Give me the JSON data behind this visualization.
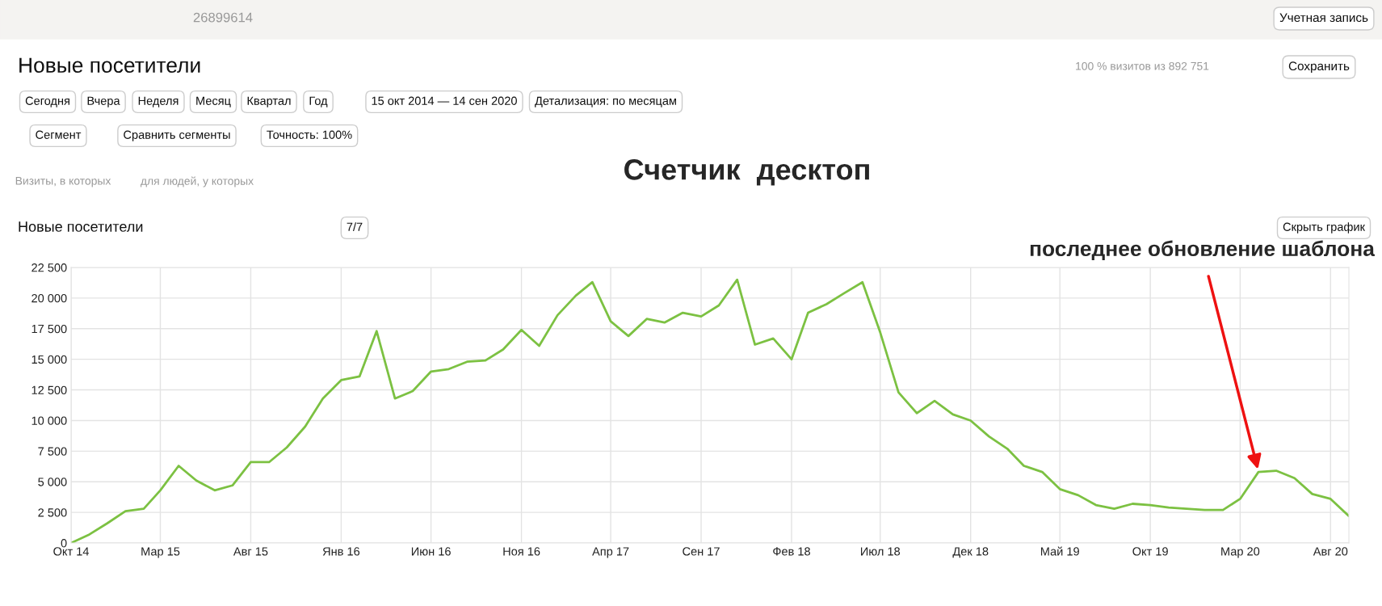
{
  "chart_data": {
    "type": "line",
    "title": "Счетчик  десктоп",
    "x": [
      "2014-10",
      "2014-11",
      "2014-12",
      "2015-01",
      "2015-02",
      "2015-03",
      "2015-04",
      "2015-05",
      "2015-06",
      "2015-07",
      "2015-08",
      "2015-09",
      "2015-10",
      "2015-11",
      "2015-12",
      "2016-01",
      "2016-02",
      "2016-03",
      "2016-04",
      "2016-05",
      "2016-06",
      "2016-07",
      "2016-08",
      "2016-09",
      "2016-10",
      "2016-11",
      "2016-12",
      "2017-01",
      "2017-02",
      "2017-03",
      "2017-04",
      "2017-05",
      "2017-06",
      "2017-07",
      "2017-08",
      "2017-09",
      "2017-10",
      "2017-11",
      "2017-12",
      "2018-01",
      "2018-02",
      "2018-03",
      "2018-04",
      "2018-05",
      "2018-06",
      "2018-07",
      "2018-08",
      "2018-09",
      "2018-10",
      "2018-11",
      "2018-12",
      "2019-01",
      "2019-02",
      "2019-03",
      "2019-04",
      "2019-05",
      "2019-06",
      "2019-07",
      "2019-08",
      "2019-09",
      "2019-10",
      "2019-11",
      "2019-12",
      "2020-01",
      "2020-02",
      "2020-03",
      "2020-04",
      "2020-05",
      "2020-06",
      "2020-07",
      "2020-08",
      "2020-09"
    ],
    "series": [
      {
        "color": "#7cc142",
        "values": [
          0,
          700,
          1600,
          2600,
          2800,
          4300,
          6300,
          5100,
          4300,
          4700,
          6600,
          6600,
          7800,
          9500,
          11800,
          13300,
          13600,
          17300,
          11800,
          12400,
          14000,
          14200,
          14800,
          14900,
          15800,
          17400,
          16100,
          18600,
          20200,
          21300,
          18100,
          16900,
          18300,
          18000,
          18800,
          18500,
          19400,
          21500,
          16200,
          16700,
          15000,
          18800,
          19500,
          20400,
          21300,
          17200,
          12300,
          10600,
          11600,
          10500,
          10000,
          8700,
          7700,
          6300,
          5800,
          4400,
          3900,
          3100,
          2800,
          3200,
          3100,
          2900,
          2800,
          2700,
          2700,
          3600,
          5800,
          5900,
          5300,
          4000,
          3600,
          2200
        ]
      }
    ],
    "xlim": [
      "2014-10",
      "2020-09"
    ],
    "xticks": [
      {
        "value": "2014-10",
        "label": "Окт 14"
      },
      {
        "value": "2015-03",
        "label": "Мар 15"
      },
      {
        "value": "2015-08",
        "label": "Авг 15"
      },
      {
        "value": "2016-01",
        "label": "Янв 16"
      },
      {
        "value": "2016-06",
        "label": "Июн 16"
      },
      {
        "value": "2016-11",
        "label": "Ноя 16"
      },
      {
        "value": "2017-04",
        "label": "Апр 17"
      },
      {
        "value": "2017-09",
        "label": "Сен 17"
      },
      {
        "value": "2018-02",
        "label": "Фев 18"
      },
      {
        "value": "2018-07",
        "label": "Июл 18"
      },
      {
        "value": "2018-12",
        "label": "Дек 18"
      },
      {
        "value": "2019-05",
        "label": "Май 19"
      },
      {
        "value": "2019-10",
        "label": "Окт 19"
      },
      {
        "value": "2020-03",
        "label": "Мар 20"
      },
      {
        "value": "2020-08",
        "label": "Авг 20"
      }
    ],
    "ylim": [
      0,
      22500
    ],
    "yticks": [
      0,
      {
        "value": 2500,
        "label": "2 500"
      },
      {
        "value": 5000,
        "label": "5 000"
      },
      {
        "value": 7500,
        "label": "7 500"
      },
      {
        "value": 10000,
        "label": "10 000"
      },
      {
        "value": 12500,
        "label": "12 500"
      },
      {
        "value": 15000,
        "label": "15 000"
      },
      {
        "value": 17500,
        "label": "17 500"
      },
      {
        "value": 20000,
        "label": "20 000"
      },
      {
        "value": 22500,
        "label": "22 500"
      }
    ],
    "grid": true,
    "annotations": [
      "26899614",
      "Учетная запись",
      "Новые посетители",
      "100 % визитов из 892 751",
      "Сохранить",
      "Сегодня",
      "Вчера",
      "Неделя",
      "Месяц",
      "Квартал",
      "Год",
      "15 окт 2014 — 14 сен 2020",
      "Детализация: по месяцам",
      "Сегмент",
      "Сравнить сегменты",
      "Точность: 100%",
      "Визиты, в которых",
      "для людей, у которых",
      "Новые посетители",
      "7/7",
      "Скрыть график",
      {
        "text": "последнее обновление шаблона",
        "x": "2020-04",
        "y": 5840
      }
    ]
  }
}
